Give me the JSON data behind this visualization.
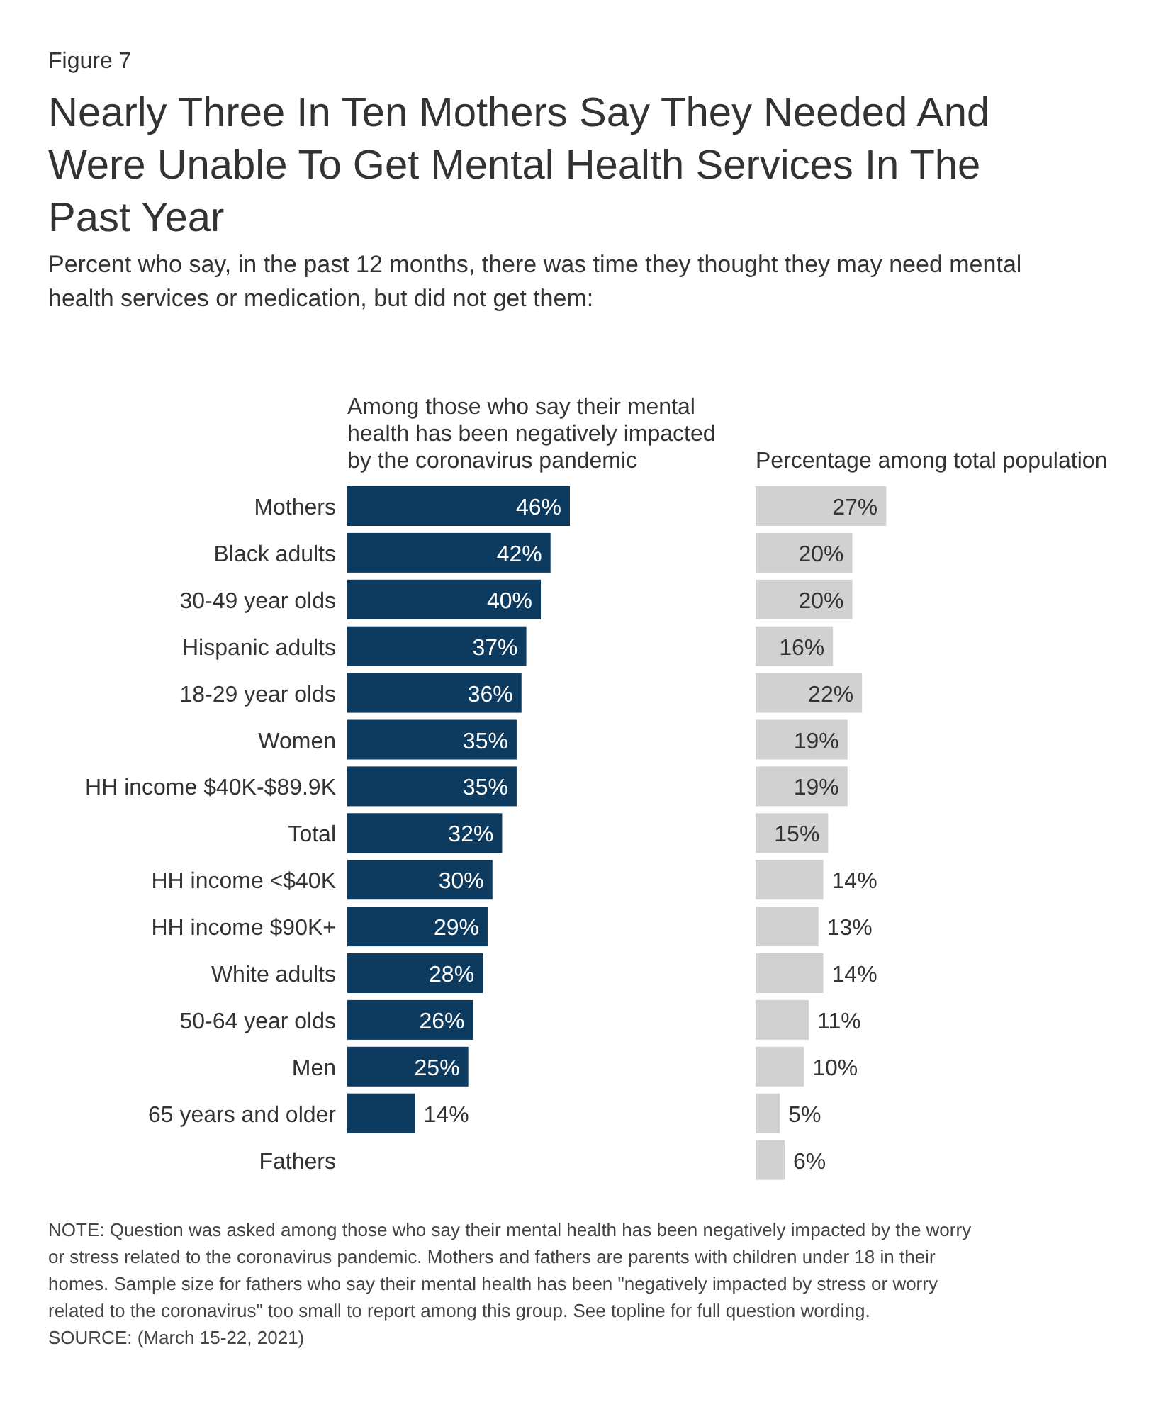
{
  "chart_data": [
    {
      "type": "bar",
      "orientation": "horizontal",
      "title": "Nearly Three In Ten Mothers Say They Needed And Were Unable To Get Mental Health Services In The Past Year",
      "subtitle": "Percent who say, in the past 12 months, there was time they thought they may need mental health services or medication, but did not get them:",
      "xlabel": "Among those who say their mental health has been negatively impacted by the coronavirus pandemic",
      "categories": [
        "Mothers",
        "Black adults",
        "30-49 year olds",
        "Hispanic adults",
        "18-29 year olds",
        "Women",
        "HH income $40K-$89.9K",
        "Total",
        "HH income <$40K",
        "HH income $90K+",
        "White adults",
        "50-64 year olds",
        "Men",
        "65 years and older",
        "Fathers"
      ],
      "values": [
        46,
        42,
        40,
        37,
        36,
        35,
        35,
        32,
        30,
        29,
        28,
        26,
        25,
        14,
        null
      ],
      "color": "#0d3a5f",
      "value_labels": [
        "46%",
        "42%",
        "40%",
        "37%",
        "36%",
        "35%",
        "35%",
        "32%",
        "30%",
        "29%",
        "28%",
        "26%",
        "25%",
        "14%",
        null
      ],
      "tick_labels": "y",
      "annotations": [
        "Figure 7",
        "NOTE: Question was asked among those who say their mental health has been negatively impacted by the worry or stress related to the coronavirus pandemic. Mothers and fathers are parents with children under 18 in their homes. Sample size for fathers who say their mental health has been \"negatively impacted by stress or worry related to the coronavirus\" too small to report among this group. See topline for full question wording.",
        "SOURCE: (March 15-22, 2021)"
      ]
    },
    {
      "type": "bar",
      "orientation": "horizontal",
      "xlabel": "Percentage among total population",
      "categories": [
        null,
        null,
        null,
        null,
        null,
        null,
        null,
        null,
        null,
        null,
        null,
        null,
        null,
        null,
        null
      ],
      "values": [
        27,
        20,
        20,
        16,
        22,
        19,
        19,
        15,
        14,
        13,
        14,
        11,
        10,
        5,
        6
      ],
      "color": "#d1d1d1",
      "value_labels": [
        "27%",
        "20%",
        "20%",
        "16%",
        "22%",
        "19%",
        "19%",
        "15%",
        "14%",
        "13%",
        "14%",
        "11%",
        "10%",
        "5%",
        "6%"
      ],
      "tick_labels": false
    }
  ]
}
